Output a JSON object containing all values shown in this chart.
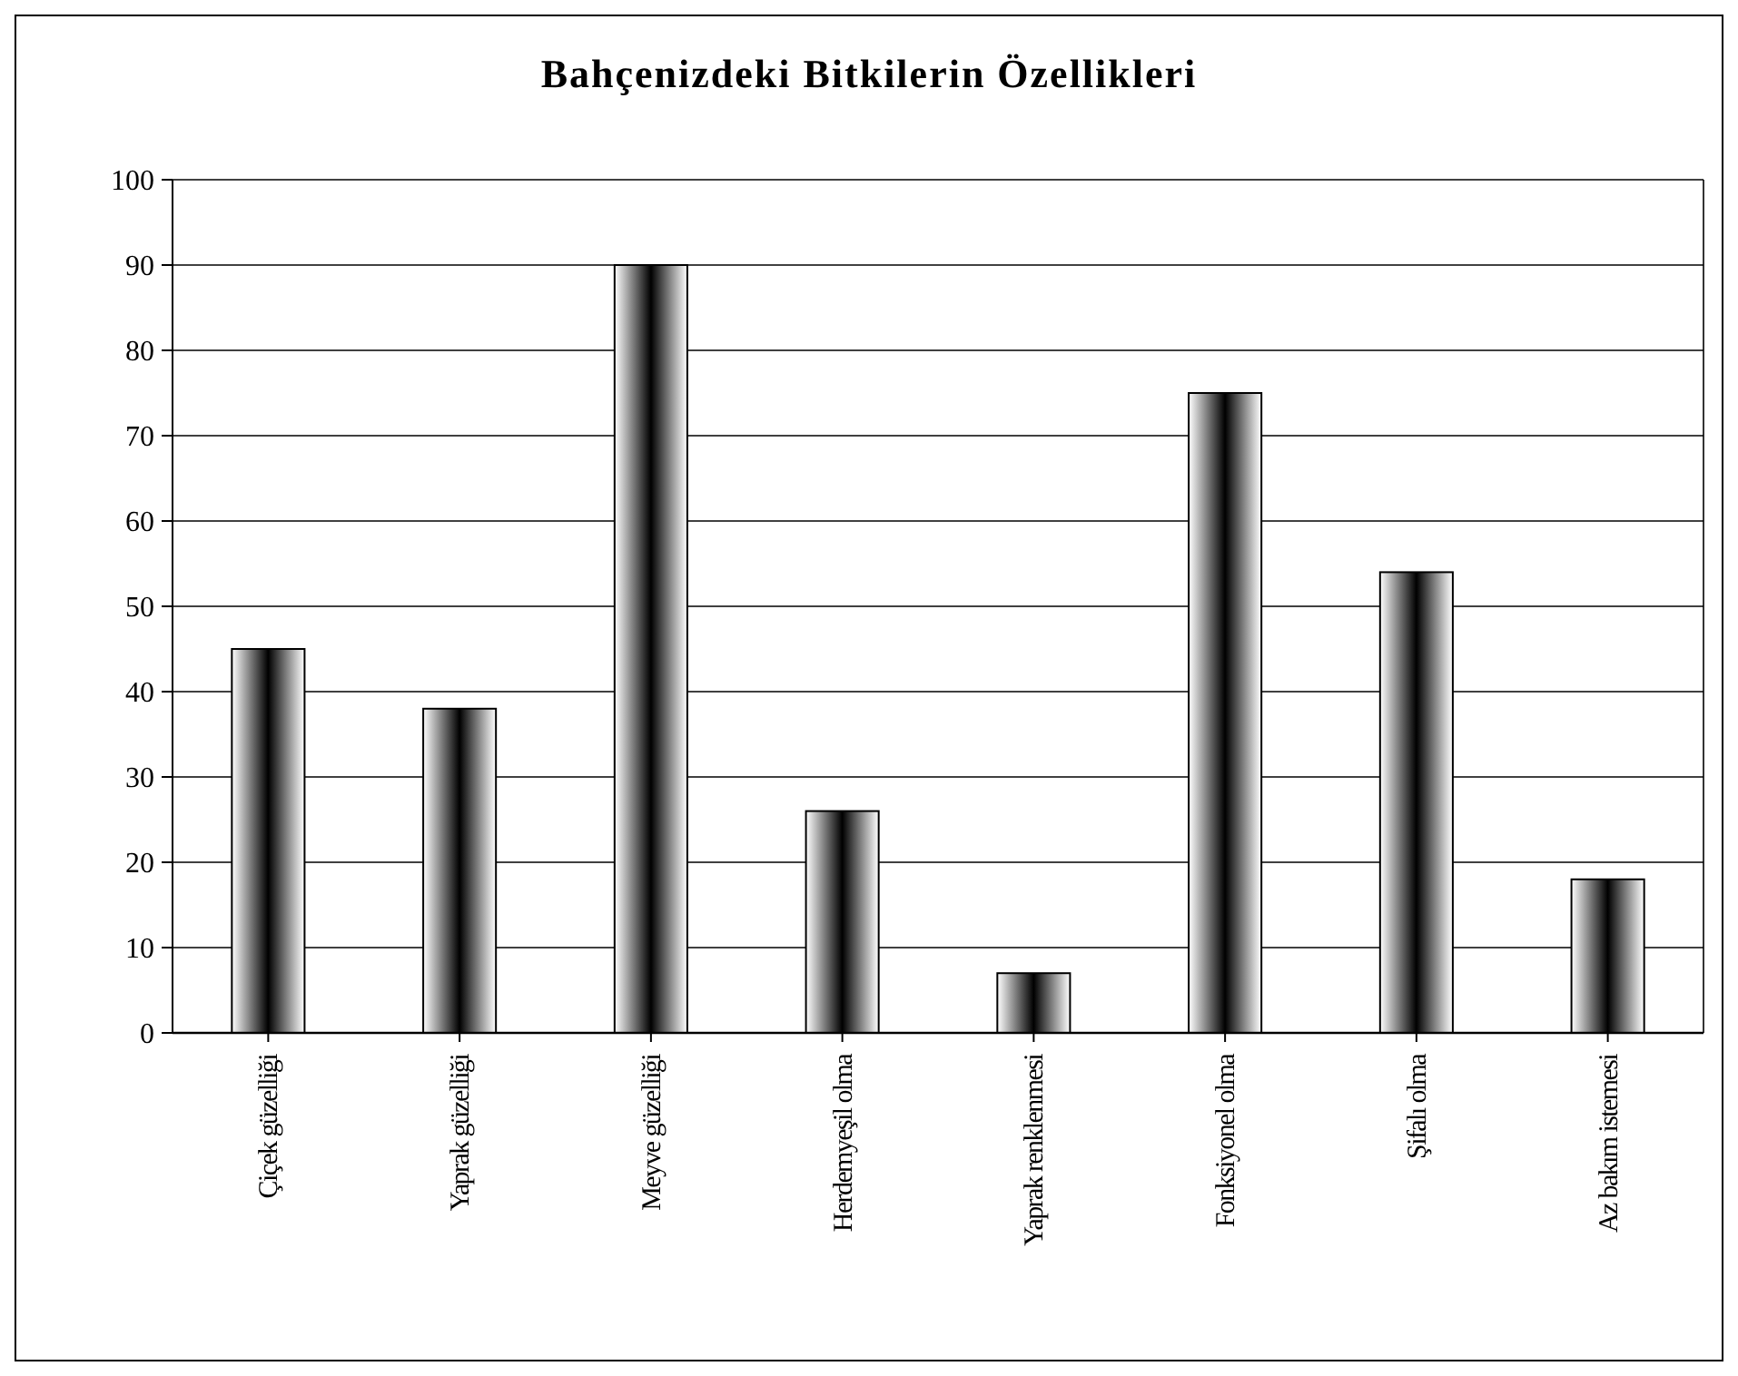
{
  "chart_data": {
    "type": "bar",
    "title": "Bahçenizdeki Bitkilerin Özellikleri",
    "categories": [
      "Çiçek güzelliği",
      "Yaprak güzelliği",
      "Meyve güzelliği",
      "Herdemyeşil olma",
      "Yaprak renklenmesi",
      "Fonksiyonel olma",
      "Şifalı olma",
      "Az bakım istemesi"
    ],
    "values": [
      45,
      38,
      90,
      26,
      7,
      75,
      54,
      18
    ],
    "color": "#000000",
    "ylim": [
      0,
      100
    ],
    "yticks": [
      0,
      10,
      20,
      30,
      40,
      50,
      60,
      70,
      80,
      90,
      100
    ],
    "grid": "y"
  }
}
